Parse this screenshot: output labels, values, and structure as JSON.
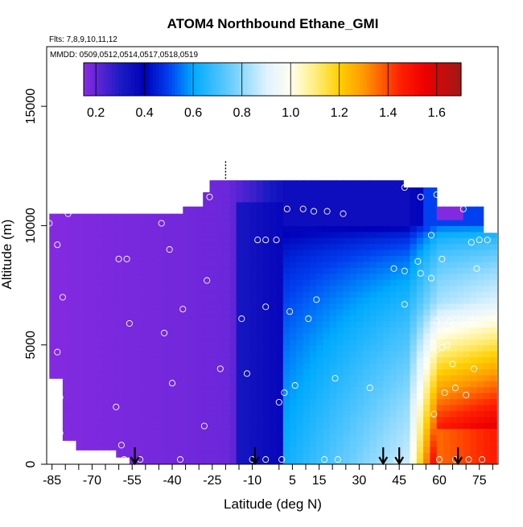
{
  "chart_data": {
    "type": "heatmap",
    "title": "ATOM4 Northbound Ethane_GMI",
    "subtitle_flights": "Flts: 7,8,9,10,11,12",
    "subtitle_dates": "MMDD: 0509,0512,0514,0517,0518,0519",
    "xlabel": "Latitude (deg N)",
    "ylabel": "Altitude (m)",
    "xlim": [
      -87,
      82
    ],
    "ylim": [
      0,
      17500
    ],
    "x_tick_labels": [
      "-85",
      "-70",
      "-55",
      "-40",
      "-25",
      "-10",
      "5",
      "15",
      "30",
      "45",
      "60",
      "75"
    ],
    "x_ticks": [
      -85,
      -70,
      -55,
      -40,
      -25,
      -10,
      5,
      15,
      30,
      45,
      60,
      75
    ],
    "x_minor_ticks": [
      -80,
      -75,
      -65,
      -60,
      -50,
      -45,
      -35,
      -30,
      -20,
      -15,
      0,
      10,
      20,
      25,
      35,
      40,
      50,
      55,
      65,
      70,
      80
    ],
    "y_ticks": [
      0,
      5000,
      10000,
      15000
    ],
    "y_tick_labels": [
      "0",
      "5000",
      "10000",
      "15000"
    ],
    "colorbar": {
      "range": [
        0.15,
        1.7
      ],
      "ticks": [
        0.2,
        0.4,
        0.6,
        0.8,
        1.0,
        1.2,
        1.4,
        1.6
      ],
      "tick_labels": [
        "0.2",
        "0.4",
        "0.6",
        "0.8",
        "1.0",
        "1.2",
        "1.4",
        "1.6"
      ],
      "stops": [
        {
          "v": 0.15,
          "color": "#8a2be2"
        },
        {
          "v": 0.3,
          "color": "#1c1cc4"
        },
        {
          "v": 0.4,
          "color": "#0000b8"
        },
        {
          "v": 0.5,
          "color": "#0040f0"
        },
        {
          "v": 0.6,
          "color": "#00aaff"
        },
        {
          "v": 0.75,
          "color": "#66ccff"
        },
        {
          "v": 0.9,
          "color": "#dff2ff"
        },
        {
          "v": 1.0,
          "color": "#fffff0"
        },
        {
          "v": 1.1,
          "color": "#ffee80"
        },
        {
          "v": 1.2,
          "color": "#ffd000"
        },
        {
          "v": 1.3,
          "color": "#ff9900"
        },
        {
          "v": 1.45,
          "color": "#ff2000"
        },
        {
          "v": 1.55,
          "color": "#ee0000"
        },
        {
          "v": 1.7,
          "color": "#a01818"
        }
      ]
    },
    "sounding_arrows_lat": [
      -54,
      -9,
      39,
      45,
      67
    ],
    "tropopause_marker": {
      "lat": -20,
      "alt_range": [
        11900,
        12700
      ]
    },
    "sample_points": [
      [
        -86,
        10100
      ],
      [
        -83,
        9200
      ],
      [
        -81,
        7000
      ],
      [
        -83,
        4700
      ],
      [
        -82,
        2800
      ],
      [
        -86,
        3400
      ],
      [
        -82,
        1300
      ],
      [
        -79,
        10500
      ],
      [
        -60,
        8600
      ],
      [
        -57,
        8600
      ],
      [
        -61,
        2400
      ],
      [
        -59,
        800
      ],
      [
        -56,
        5900
      ],
      [
        -44,
        10100
      ],
      [
        -41,
        9000
      ],
      [
        -43,
        5500
      ],
      [
        -36,
        6500
      ],
      [
        -40,
        3400
      ],
      [
        -26,
        11200
      ],
      [
        -27,
        7700
      ],
      [
        -22,
        4000
      ],
      [
        -14,
        6100
      ],
      [
        -12,
        3800
      ],
      [
        -28,
        1600
      ],
      [
        -37,
        200
      ],
      [
        -58,
        200
      ],
      [
        -52,
        200
      ],
      [
        -8,
        9400
      ],
      [
        -5,
        9400
      ],
      [
        -5,
        6600
      ],
      [
        -1,
        9400
      ],
      [
        0,
        2600
      ],
      [
        1,
        200
      ],
      [
        2,
        3000
      ],
      [
        3,
        10700
      ],
      [
        4,
        6400
      ],
      [
        6,
        3300
      ],
      [
        9,
        10700
      ],
      [
        11,
        6100
      ],
      [
        13,
        10600
      ],
      [
        14,
        6900
      ],
      [
        21,
        3600
      ],
      [
        18,
        10600
      ],
      [
        24,
        10500
      ],
      [
        17,
        200
      ],
      [
        22,
        200
      ],
      [
        34,
        3200
      ],
      [
        44,
        200
      ],
      [
        43,
        8200
      ],
      [
        47,
        11600
      ],
      [
        47,
        8100
      ],
      [
        47,
        6700
      ],
      [
        53,
        11200
      ],
      [
        52,
        8500
      ],
      [
        53,
        8000
      ],
      [
        57,
        9600
      ],
      [
        57,
        7800
      ],
      [
        59,
        11300
      ],
      [
        61,
        8600
      ],
      [
        59,
        6000
      ],
      [
        59,
        4800
      ],
      [
        61,
        4900
      ],
      [
        63,
        5000
      ],
      [
        64,
        6000
      ],
      [
        65,
        4200
      ],
      [
        69,
        10700
      ],
      [
        72,
        9300
      ],
      [
        72,
        6000
      ],
      [
        73,
        4000
      ],
      [
        74,
        8200
      ],
      [
        75,
        9400
      ],
      [
        78,
        9400
      ],
      [
        66,
        3200
      ],
      [
        62,
        3000
      ],
      [
        70,
        2900
      ],
      [
        58,
        2100
      ],
      [
        76,
        200
      ],
      [
        71,
        200
      ],
      [
        66,
        200
      ],
      [
        60,
        200
      ],
      [
        -5,
        200
      ],
      [
        -10,
        200
      ]
    ]
  }
}
